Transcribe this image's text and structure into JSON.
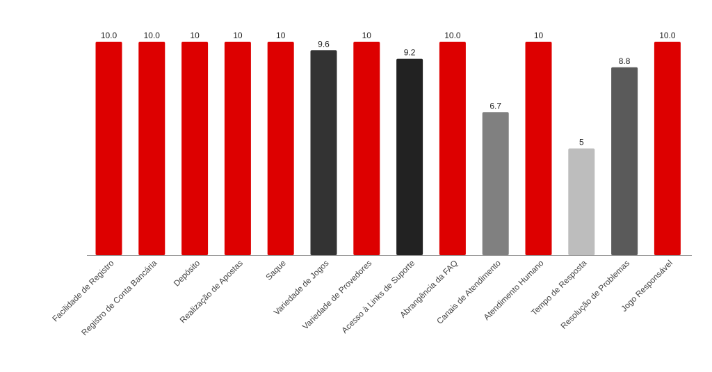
{
  "chart_data": {
    "type": "bar",
    "title": "",
    "xlabel": "",
    "ylabel": "",
    "ylim": [
      0,
      10
    ],
    "grid": false,
    "legend": "none",
    "categories": [
      "Facilidade de Registro",
      "Registro de Conta Bancária",
      "Depósito",
      "Realização de Apostas",
      "Saque",
      "Variedade de Jogos",
      "Variedade de Provedores",
      "Acesso à Links de Suporte",
      "Abrangência da FAQ",
      "Canais de Atendimento",
      "Atendimento Humano",
      "Tempo de Resposta",
      "Resolução de Problemas",
      "Jogo Responsável"
    ],
    "values": [
      10.0,
      10.0,
      10,
      10,
      10,
      9.6,
      10,
      9.2,
      10.0,
      6.7,
      10,
      5,
      8.8,
      10.0
    ],
    "value_labels": [
      "10.0",
      "10.0",
      "10",
      "10",
      "10",
      "9.6",
      "10",
      "9.2",
      "10.0",
      "6.7",
      "10",
      "5",
      "8.8",
      "10.0"
    ],
    "colors": [
      "#dd0000",
      "#dd0000",
      "#dd0000",
      "#dd0000",
      "#dd0000",
      "#333333",
      "#dd0000",
      "#222222",
      "#dd0000",
      "#808080",
      "#dd0000",
      "#bdbdbd",
      "#5a5a5a",
      "#dd0000"
    ],
    "axis_color": "#999999",
    "label_color": "#444444",
    "value_label_color": "#222222"
  }
}
